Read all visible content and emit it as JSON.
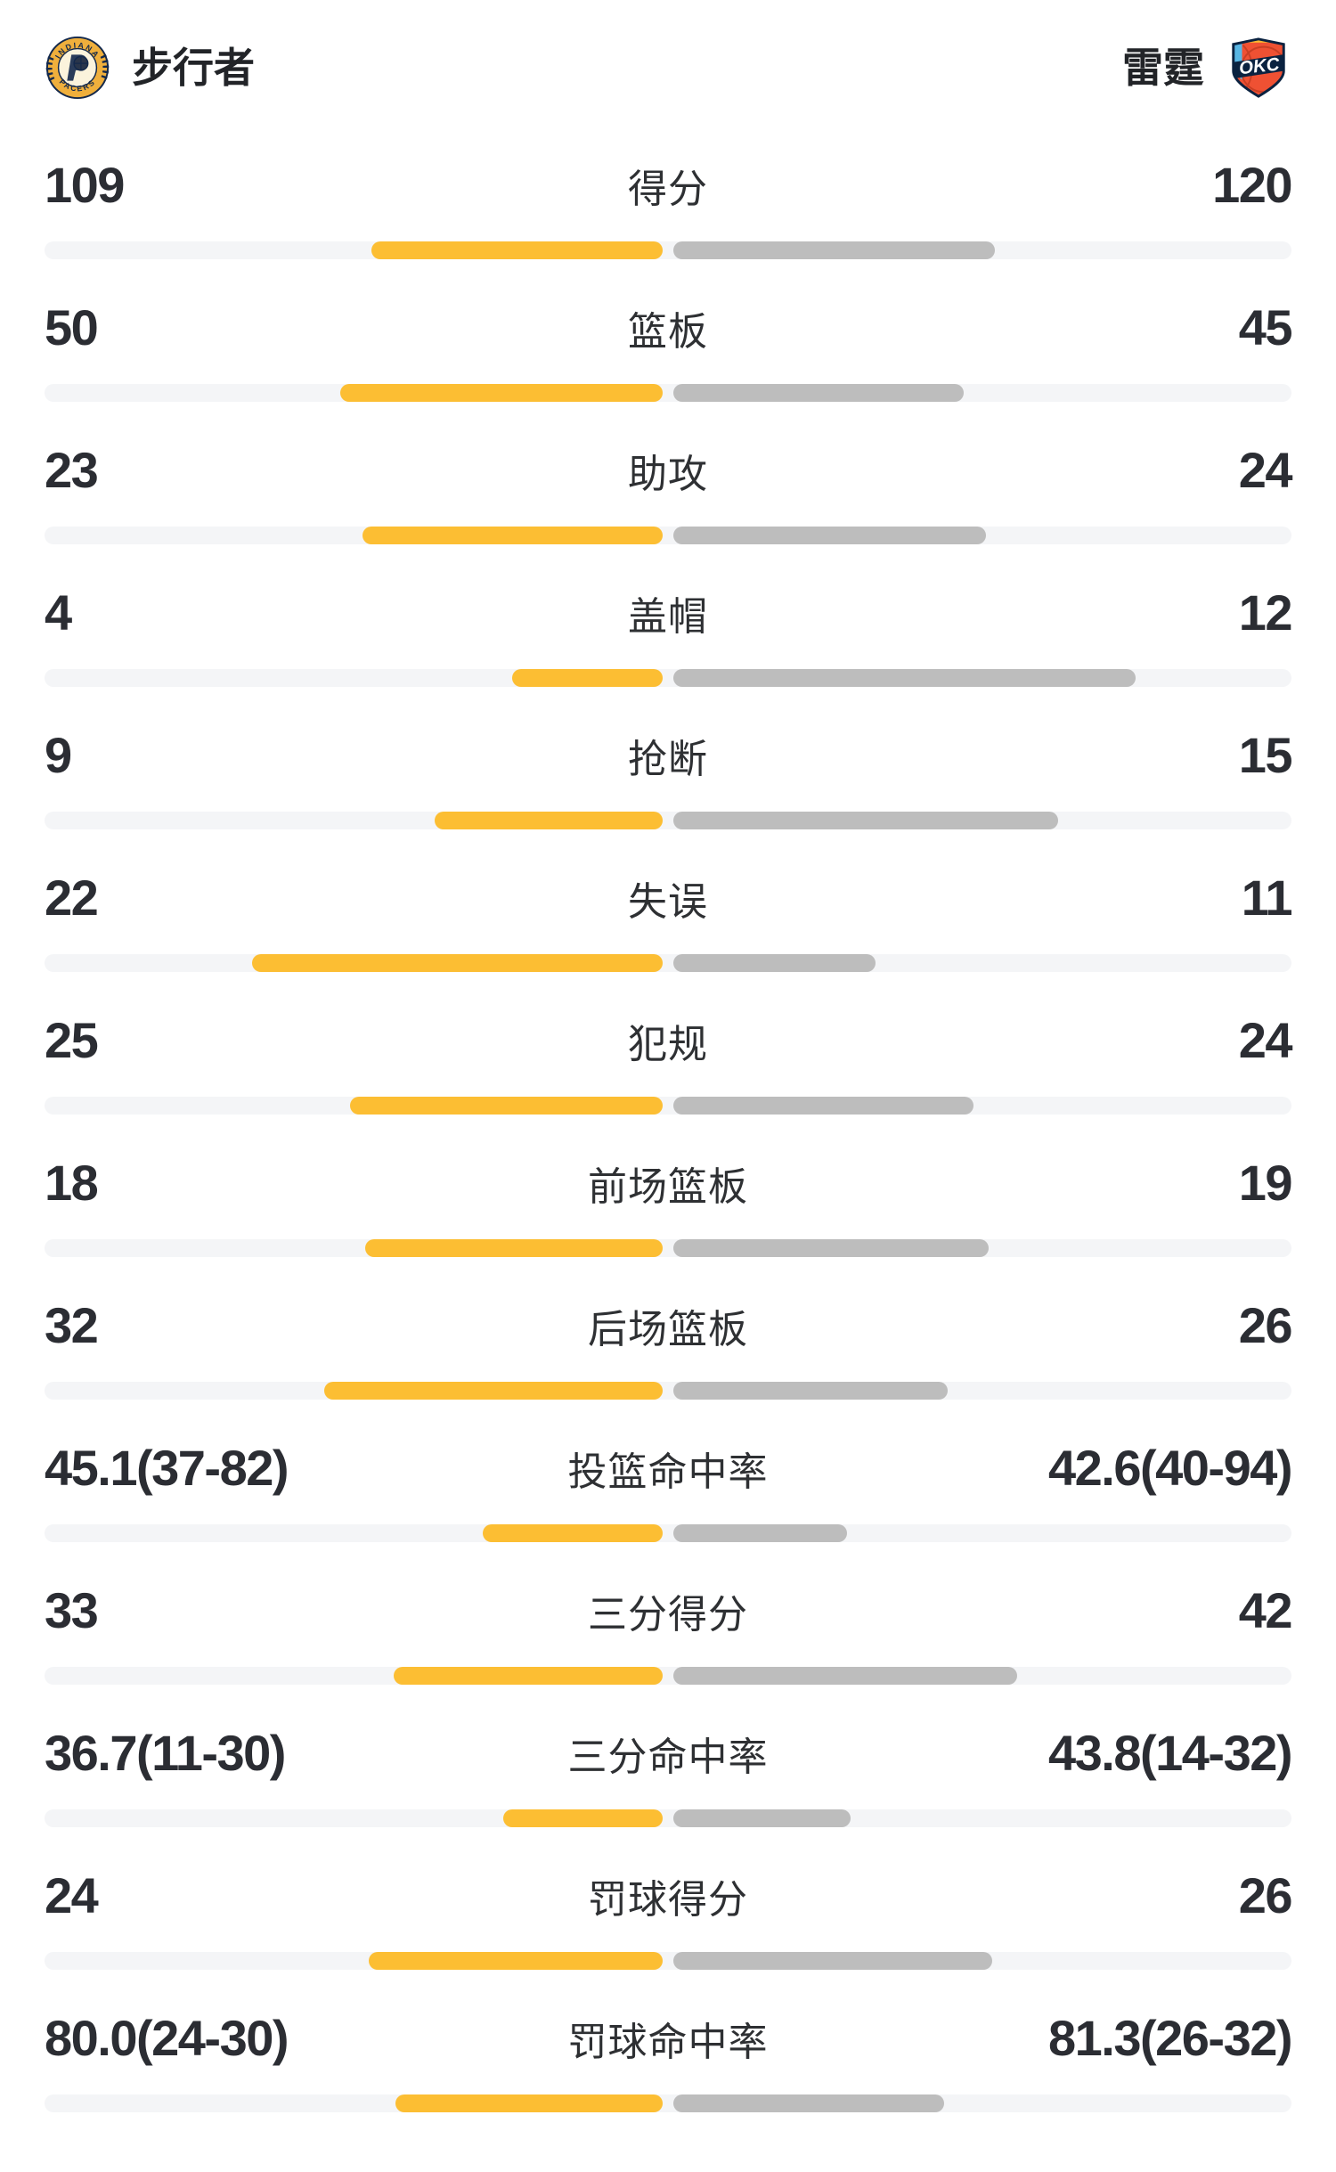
{
  "header": {
    "home": {
      "name": "步行者",
      "logo": "indiana-pacers-logo"
    },
    "away": {
      "name": "雷霆",
      "logo": "okc-thunder-logo"
    }
  },
  "colors": {
    "home_bar": "#fcbe33",
    "away_bar": "#bdbdbd",
    "track": "#f4f5f7",
    "text": "#2b2d33"
  },
  "chart_data": {
    "type": "bar",
    "orientation": "horizontal-mirrored-from-center",
    "legend": [
      "步行者",
      "雷霆"
    ],
    "legend_position": "top",
    "grid": false,
    "categories": [
      "得分",
      "篮板",
      "助攻",
      "盖帽",
      "抢断",
      "失误",
      "犯规",
      "前场篮板",
      "后场篮板",
      "投篮命中率",
      "三分得分",
      "三分命中率",
      "罚球得分",
      "罚球命中率"
    ],
    "series": [
      {
        "name": "步行者",
        "values": [
          109,
          50,
          23,
          4,
          9,
          22,
          25,
          18,
          32,
          45.1,
          33,
          36.7,
          24,
          80.0
        ]
      },
      {
        "name": "雷霆",
        "values": [
          120,
          45,
          24,
          12,
          15,
          11,
          24,
          19,
          26,
          42.6,
          42,
          43.8,
          26,
          81.3
        ]
      }
    ],
    "rows": [
      {
        "label": "得分",
        "left": "109",
        "right": "120",
        "left_num": 109,
        "right_num": 120,
        "scale": "share"
      },
      {
        "label": "篮板",
        "left": "50",
        "right": "45",
        "left_num": 50,
        "right_num": 45,
        "scale": "share"
      },
      {
        "label": "助攻",
        "left": "23",
        "right": "24",
        "left_num": 23,
        "right_num": 24,
        "scale": "share"
      },
      {
        "label": "盖帽",
        "left": "4",
        "right": "12",
        "left_num": 4,
        "right_num": 12,
        "scale": "share"
      },
      {
        "label": "抢断",
        "left": "9",
        "right": "15",
        "left_num": 9,
        "right_num": 15,
        "scale": "share"
      },
      {
        "label": "失误",
        "left": "22",
        "right": "11",
        "left_num": 22,
        "right_num": 11,
        "scale": "share"
      },
      {
        "label": "犯规",
        "left": "25",
        "right": "24",
        "left_num": 25,
        "right_num": 24,
        "scale": "share"
      },
      {
        "label": "前场篮板",
        "left": "18",
        "right": "19",
        "left_num": 18,
        "right_num": 19,
        "scale": "share"
      },
      {
        "label": "后场篮板",
        "left": "32",
        "right": "26",
        "left_num": 32,
        "right_num": 26,
        "scale": "share"
      },
      {
        "label": "投篮命中率",
        "left": "45.1(37-82)",
        "right": "42.6(40-94)",
        "left_num": 45.1,
        "right_num": 42.6,
        "scale": "percent"
      },
      {
        "label": "三分得分",
        "left": "33",
        "right": "42",
        "left_num": 33,
        "right_num": 42,
        "scale": "share"
      },
      {
        "label": "三分命中率",
        "left": "36.7(11-30)",
        "right": "43.8(14-32)",
        "left_num": 36.7,
        "right_num": 43.8,
        "scale": "percent"
      },
      {
        "label": "罚球得分",
        "left": "24",
        "right": "26",
        "left_num": 24,
        "right_num": 26,
        "scale": "share"
      },
      {
        "label": "罚球命中率",
        "left": "80.0(24-30)",
        "right": "81.3(26-32)",
        "left_num": 80.0,
        "right_num": 81.3,
        "scale": "percent"
      }
    ]
  }
}
